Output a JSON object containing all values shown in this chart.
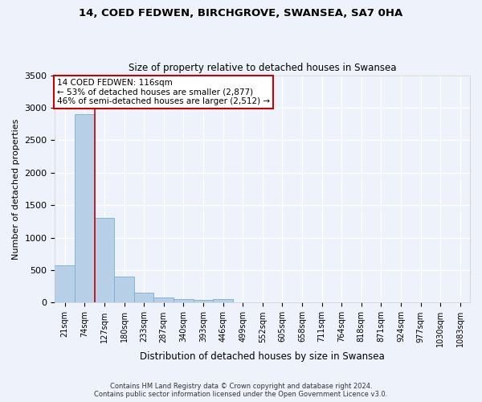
{
  "title_line1": "14, COED FEDWEN, BIRCHGROVE, SWANSEA, SA7 0HA",
  "title_line2": "Size of property relative to detached houses in Swansea",
  "xlabel": "Distribution of detached houses by size in Swansea",
  "ylabel": "Number of detached properties",
  "categories": [
    "21sqm",
    "74sqm",
    "127sqm",
    "180sqm",
    "233sqm",
    "287sqm",
    "340sqm",
    "393sqm",
    "446sqm",
    "499sqm",
    "552sqm",
    "605sqm",
    "658sqm",
    "711sqm",
    "764sqm",
    "818sqm",
    "871sqm",
    "924sqm",
    "977sqm",
    "1030sqm",
    "1083sqm"
  ],
  "values": [
    575,
    2900,
    1310,
    405,
    155,
    80,
    50,
    45,
    50,
    0,
    0,
    0,
    0,
    0,
    0,
    0,
    0,
    0,
    0,
    0,
    0
  ],
  "bar_color": "#b8cfe8",
  "bar_edge_color": "#7aaed4",
  "background_color": "#edf2fb",
  "grid_color": "#ffffff",
  "annotation_box_text": "14 COED FEDWEN: 116sqm\n← 53% of detached houses are smaller (2,877)\n46% of semi-detached houses are larger (2,512) →",
  "annotation_box_color": "#ffffff",
  "annotation_box_edge_color": "#cc0000",
  "property_line_index": 2,
  "property_line_color": "#cc0000",
  "ylim": [
    0,
    3500
  ],
  "yticks": [
    0,
    500,
    1000,
    1500,
    2000,
    2500,
    3000,
    3500
  ],
  "footer_line1": "Contains HM Land Registry data © Crown copyright and database right 2024.",
  "footer_line2": "Contains public sector information licensed under the Open Government Licence v3.0."
}
